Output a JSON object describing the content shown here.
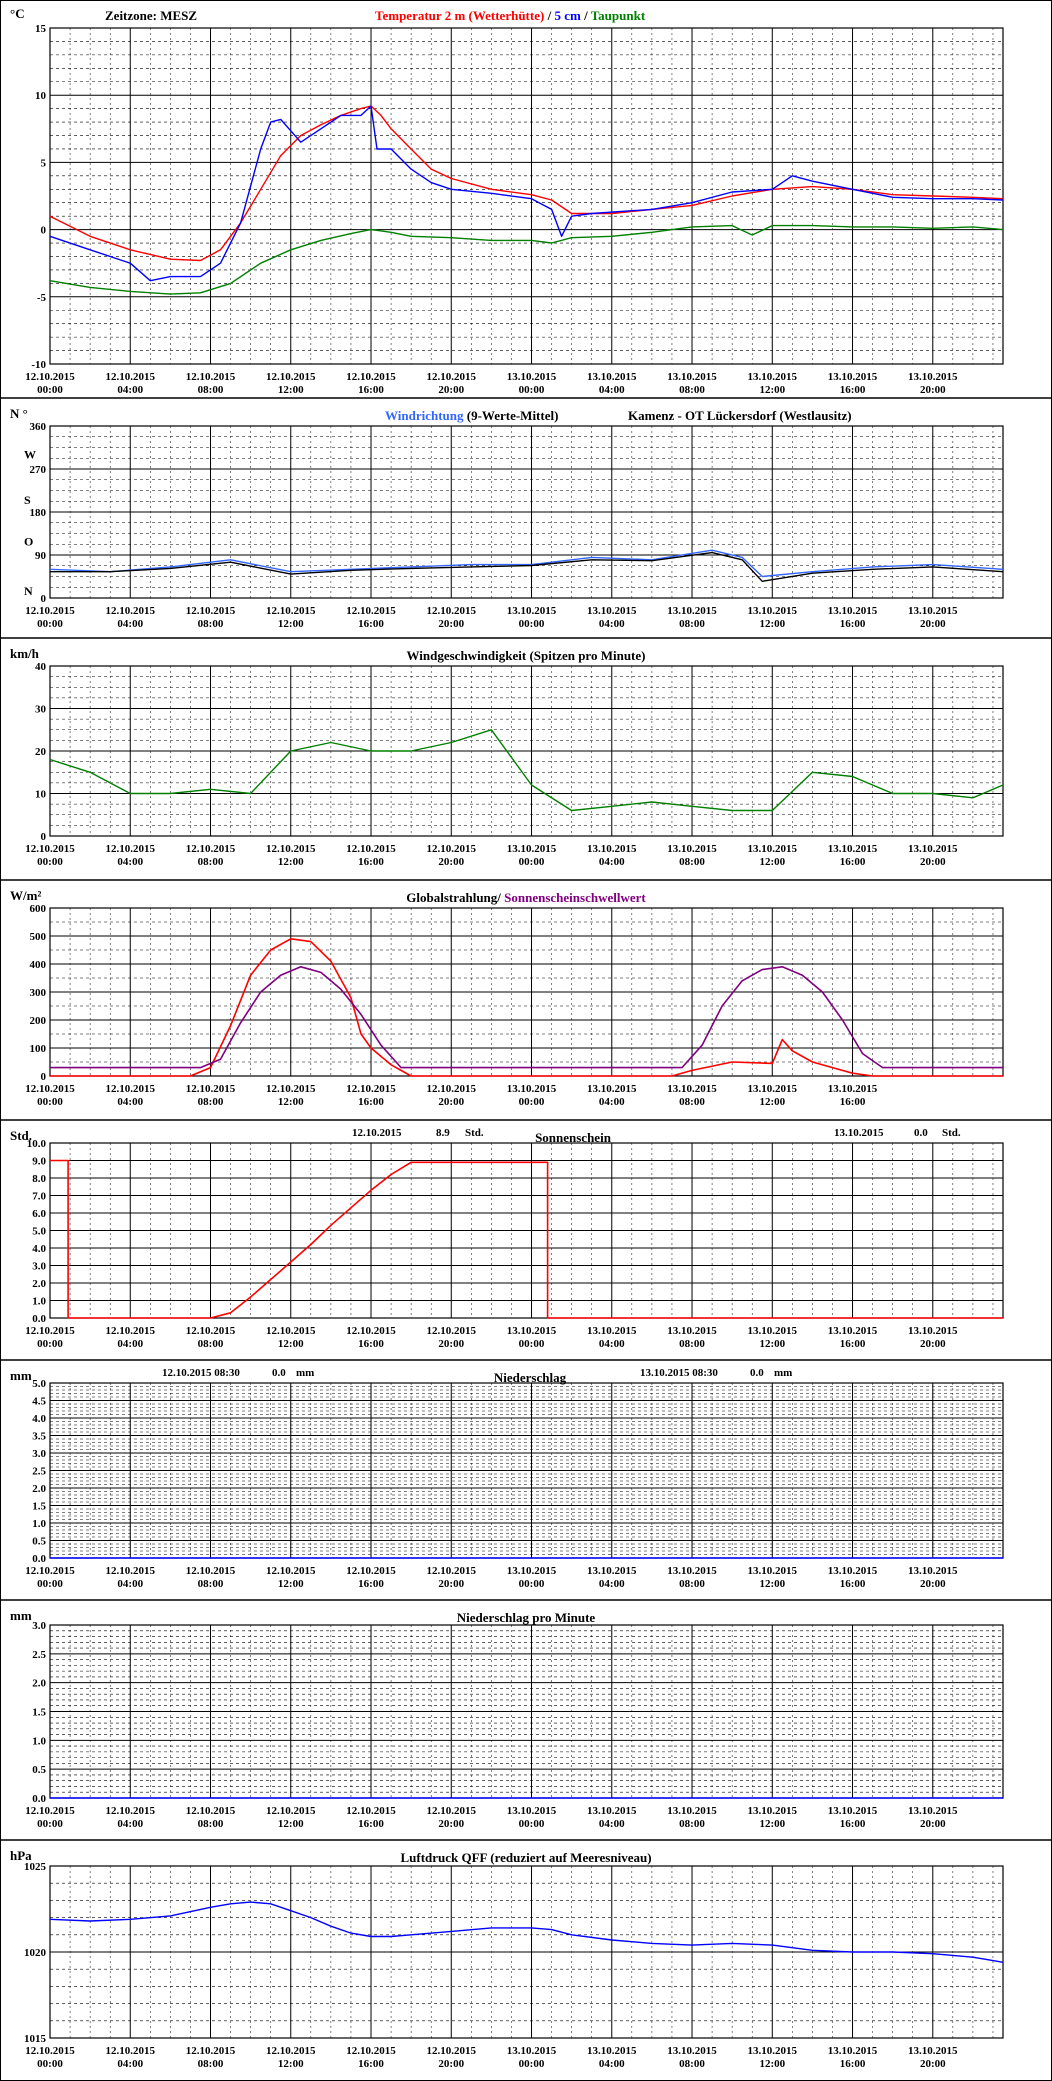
{
  "x_ticks": [
    {
      "date": "12.10.2015",
      "time": "00:00"
    },
    {
      "date": "12.10.2015",
      "time": "04:00"
    },
    {
      "date": "12.10.2015",
      "time": "08:00"
    },
    {
      "date": "12.10.2015",
      "time": "12:00"
    },
    {
      "date": "12.10.2015",
      "time": "16:00"
    },
    {
      "date": "12.10.2015",
      "time": "20:00"
    },
    {
      "date": "13.10.2015",
      "time": "00:00"
    },
    {
      "date": "13.10.2015",
      "time": "04:00"
    },
    {
      "date": "13.10.2015",
      "time": "08:00"
    },
    {
      "date": "13.10.2015",
      "time": "12:00"
    },
    {
      "date": "13.10.2015",
      "time": "16:00"
    },
    {
      "date": "13.10.2015",
      "time": "20:00"
    }
  ],
  "x_unit_hours_per_tick": 4,
  "colors": {
    "red": "#ff0000",
    "blue": "#0000ff",
    "green": "#008000",
    "purple": "#800080",
    "black": "#000000",
    "lightblue": "#3366ff"
  },
  "chart_data": [
    {
      "id": "temperature",
      "type": "line",
      "unit": "°C",
      "timezone_label": "Zeitzone: MESZ",
      "title_parts": [
        {
          "text": "Temperatur 2 m (Wetterhütte)",
          "color": "#ff0000"
        },
        {
          "text": "  /  ",
          "color": "#000000"
        },
        {
          "text": "5 cm",
          "color": "#0000ff"
        },
        {
          "text": " / ",
          "color": "#000000"
        },
        {
          "text": "Taupunkt",
          "color": "#008000"
        }
      ],
      "ylim": [
        -10,
        15
      ],
      "y_ticks": [
        "15",
        "10",
        "5",
        "0",
        "-5",
        "-10"
      ],
      "series": [
        {
          "name": "Temperatur 2 m (Wetterhütte)",
          "color": "#ff0000",
          "x": [
            0,
            2,
            4,
            6,
            7.5,
            8.5,
            9.5,
            10.5,
            11.5,
            12.5,
            13.5,
            14.5,
            15.5,
            16,
            16.5,
            17,
            18,
            19,
            20,
            22,
            24,
            25,
            26,
            28,
            30,
            32,
            34,
            36,
            38,
            40,
            42,
            44,
            46,
            47.5
          ],
          "y": [
            1,
            -0.5,
            -1.5,
            -2.2,
            -2.3,
            -1.5,
            0.5,
            3,
            5.5,
            7,
            7.8,
            8.5,
            9,
            9.2,
            8.5,
            7.5,
            6,
            4.5,
            3.8,
            3,
            2.6,
            2.2,
            1.2,
            1.2,
            1.5,
            1.8,
            2.5,
            3,
            3.2,
            3,
            2.6,
            2.5,
            2.4,
            2.3
          ]
        },
        {
          "name": "5 cm",
          "color": "#0000ff",
          "x": [
            0,
            2,
            4,
            5,
            6,
            7.5,
            8.5,
            9.5,
            10.5,
            11,
            11.5,
            12.5,
            13.5,
            14.5,
            15.5,
            16,
            16.3,
            17,
            18,
            19,
            20,
            22,
            24,
            25,
            25.5,
            26,
            27,
            28,
            30,
            32,
            34,
            36,
            37,
            38,
            40,
            42,
            44,
            46,
            47.5
          ],
          "y": [
            -0.5,
            -1.5,
            -2.5,
            -3.8,
            -3.5,
            -3.5,
            -2.5,
            0.5,
            6,
            8,
            8.2,
            6.5,
            7.5,
            8.5,
            8.5,
            9.2,
            6,
            6,
            4.5,
            3.5,
            3,
            2.7,
            2.3,
            1.5,
            -0.5,
            1,
            1.2,
            1.3,
            1.5,
            2,
            2.8,
            3,
            4,
            3.6,
            3,
            2.4,
            2.3,
            2.3,
            2.2
          ]
        },
        {
          "name": "Taupunkt",
          "color": "#008000",
          "x": [
            0,
            2,
            4,
            6,
            7.5,
            9,
            10.5,
            12,
            13.5,
            15,
            16,
            17,
            18,
            20,
            22,
            24,
            25,
            26,
            28,
            30,
            32,
            34,
            35,
            36,
            38,
            40,
            42,
            44,
            46,
            47.5
          ],
          "y": [
            -3.8,
            -4.3,
            -4.6,
            -4.8,
            -4.7,
            -4,
            -2.5,
            -1.5,
            -0.8,
            -0.3,
            0,
            -0.2,
            -0.5,
            -0.6,
            -0.8,
            -0.8,
            -1,
            -0.6,
            -0.5,
            -0.2,
            0.2,
            0.3,
            -0.4,
            0.3,
            0.3,
            0.2,
            0.2,
            0.1,
            0.2,
            0
          ]
        }
      ]
    },
    {
      "id": "wind_direction",
      "type": "line",
      "unit": "N °",
      "title_parts": [
        {
          "text": "Windrichtung",
          "color": "#3366ff"
        },
        {
          "text": " (9-Werte-Mittel)",
          "color": "#000000"
        }
      ],
      "location": "Kamenz - OT Lückersdorf (Westlausitz)",
      "ylim": [
        0,
        360
      ],
      "y_ticks": [
        "360",
        "270",
        "180",
        "90",
        "0"
      ],
      "dir_labels": [
        "W",
        "S",
        "O",
        "N"
      ],
      "series": [
        {
          "name": "Windrichtung",
          "color": "#3366ff",
          "x": [
            0,
            3,
            6,
            9,
            12,
            15,
            18,
            21,
            24,
            27,
            30,
            33,
            34.5,
            35.5,
            38,
            41,
            44,
            47.5
          ],
          "y": [
            60,
            55,
            65,
            80,
            55,
            60,
            65,
            70,
            70,
            85,
            80,
            100,
            85,
            45,
            55,
            65,
            70,
            60
          ]
        },
        {
          "name": "9-Werte-Mittel",
          "color": "#000000",
          "x": [
            0,
            3,
            6,
            9,
            12,
            15,
            18,
            21,
            24,
            27,
            30,
            33,
            34.5,
            35.5,
            38,
            41,
            44,
            47.5
          ],
          "y": [
            55,
            55,
            62,
            75,
            50,
            58,
            62,
            65,
            68,
            80,
            78,
            95,
            80,
            35,
            52,
            60,
            65,
            55
          ]
        }
      ]
    },
    {
      "id": "wind_speed",
      "type": "line",
      "unit": "km/h",
      "title_parts": [
        {
          "text": "Windgeschwindigkeit (Spitzen pro Minute)",
          "color": "#000000"
        }
      ],
      "ylim": [
        0,
        40
      ],
      "y_ticks": [
        "40",
        "30",
        "20",
        "10",
        "0"
      ],
      "series": [
        {
          "name": "Windgeschwindigkeit",
          "color": "#008000",
          "x": [
            0,
            2,
            4,
            6,
            8,
            10,
            12,
            14,
            16,
            18,
            20,
            22,
            24,
            26,
            28,
            30,
            32,
            34,
            36,
            38,
            40,
            42,
            44,
            46,
            47.5
          ],
          "y": [
            18,
            15,
            10,
            10,
            11,
            10,
            20,
            22,
            20,
            20,
            22,
            25,
            12,
            6,
            7,
            8,
            7,
            6,
            6,
            15,
            14,
            10,
            10,
            9,
            12
          ]
        }
      ]
    },
    {
      "id": "radiation",
      "type": "line",
      "unit": "W/m²",
      "title_parts": [
        {
          "text": "Globalstrahlung/ ",
          "color": "#000000"
        },
        {
          "text": "Sonnenscheinschwellwert",
          "color": "#800080"
        }
      ],
      "ylim": [
        0,
        600
      ],
      "y_ticks": [
        "600",
        "500",
        "400",
        "300",
        "200",
        "100",
        "0"
      ],
      "series": [
        {
          "name": "Globalstrahlung",
          "color": "#ff0000",
          "x": [
            0,
            7,
            8,
            9,
            10,
            11,
            12,
            13,
            14,
            15,
            15.5,
            16,
            17,
            18,
            24,
            31,
            32,
            34,
            36,
            36.5,
            37,
            38,
            39,
            40,
            41,
            47.5
          ],
          "y": [
            0,
            0,
            30,
            180,
            360,
            450,
            490,
            480,
            410,
            280,
            150,
            100,
            40,
            0,
            0,
            0,
            20,
            50,
            45,
            130,
            90,
            50,
            30,
            10,
            0,
            0
          ]
        },
        {
          "name": "Sonnenscheinschwellwert",
          "color": "#800080",
          "x": [
            0,
            7.5,
            8.5,
            9.5,
            10.5,
            11.5,
            12.5,
            13.5,
            14.5,
            15.5,
            16.5,
            17.5,
            31.5,
            32.5,
            33.5,
            34.5,
            35.5,
            36.5,
            37.5,
            38.5,
            39.5,
            40.5,
            41.5,
            47.5
          ],
          "y": [
            30,
            30,
            60,
            190,
            300,
            360,
            390,
            370,
            310,
            220,
            110,
            30,
            30,
            110,
            250,
            340,
            380,
            390,
            360,
            300,
            200,
            80,
            30,
            30
          ]
        }
      ]
    },
    {
      "id": "sunshine",
      "type": "line",
      "unit": "Std.",
      "title_parts": [
        {
          "text": "Sonnenschein",
          "color": "#000000"
        }
      ],
      "day1": {
        "date": "12.10.2015",
        "value": "8.9",
        "unit": "Std."
      },
      "day2": {
        "date": "13.10.2015",
        "value": "0.0",
        "unit": "Std."
      },
      "ylim": [
        0,
        10
      ],
      "y_ticks": [
        "10.0",
        "9.0",
        "8.0",
        "7.0",
        "6.0",
        "5.0",
        "4.0",
        "3.0",
        "2.0",
        "1.0",
        "0.0"
      ],
      "series": [
        {
          "name": "Sonnenschein",
          "color": "#ff0000",
          "x": [
            0,
            0.9,
            0.9,
            8,
            9,
            10,
            11,
            12,
            13,
            14,
            15,
            16,
            17,
            18,
            24.8,
            24.8,
            47.5
          ],
          "y": [
            9,
            9,
            0,
            0,
            0.3,
            1.2,
            2.2,
            3.2,
            4.2,
            5.3,
            6.3,
            7.3,
            8.2,
            8.9,
            8.9,
            0,
            0
          ]
        }
      ]
    },
    {
      "id": "precipitation",
      "type": "line",
      "unit": "mm",
      "title_parts": [
        {
          "text": "Niederschlag",
          "color": "#000000"
        }
      ],
      "day1": {
        "date": "12.10.2015 08:30",
        "value": "0.0",
        "unit": "mm"
      },
      "day2": {
        "date": "13.10.2015 08:30",
        "value": "0.0",
        "unit": "mm"
      },
      "ylim": [
        0,
        5
      ],
      "y_ticks": [
        "5.0",
        "4.5",
        "4.0",
        "3.5",
        "3.0",
        "2.5",
        "2.0",
        "1.5",
        "1.0",
        "0.5",
        "0.0"
      ],
      "series": [
        {
          "name": "Niederschlag",
          "color": "#0000ff",
          "x": [
            0,
            47.5
          ],
          "y": [
            0,
            0
          ]
        }
      ]
    },
    {
      "id": "precipitation_minute",
      "type": "line",
      "unit": "mm",
      "title_parts": [
        {
          "text": "Niederschlag pro Minute",
          "color": "#000000"
        }
      ],
      "ylim": [
        0,
        3
      ],
      "y_ticks": [
        "3.0",
        "2.5",
        "2.0",
        "1.5",
        "1.0",
        "0.5",
        "0.0"
      ],
      "series": [
        {
          "name": "Niederschlag pro Minute",
          "color": "#0000ff",
          "x": [
            0,
            47.5
          ],
          "y": [
            0,
            0
          ]
        }
      ]
    },
    {
      "id": "pressure",
      "type": "line",
      "unit": "hPa",
      "title_parts": [
        {
          "text": "Luftdruck QFF (reduziert auf Meeresniveau)",
          "color": "#000000"
        }
      ],
      "ylim": [
        1015,
        1025
      ],
      "y_ticks": [
        "1025",
        "1020",
        "1015"
      ],
      "series": [
        {
          "name": "Luftdruck QFF",
          "color": "#0000ff",
          "x": [
            0,
            2,
            4,
            6,
            8,
            9,
            10,
            11,
            12,
            13,
            14,
            15,
            16,
            17,
            18,
            20,
            22,
            24,
            25,
            26,
            28,
            30,
            32,
            34,
            36,
            38,
            40,
            42,
            44,
            46,
            47,
            47.5
          ],
          "y": [
            1021.9,
            1021.8,
            1021.9,
            1022.1,
            1022.6,
            1022.8,
            1022.9,
            1022.8,
            1022.4,
            1022,
            1021.5,
            1021.1,
            1020.9,
            1020.9,
            1021,
            1021.2,
            1021.4,
            1021.4,
            1021.3,
            1021,
            1020.7,
            1020.5,
            1020.4,
            1020.5,
            1020.4,
            1020.1,
            1020,
            1020,
            1019.9,
            1019.7,
            1019.5,
            1019.4
          ]
        }
      ]
    }
  ]
}
